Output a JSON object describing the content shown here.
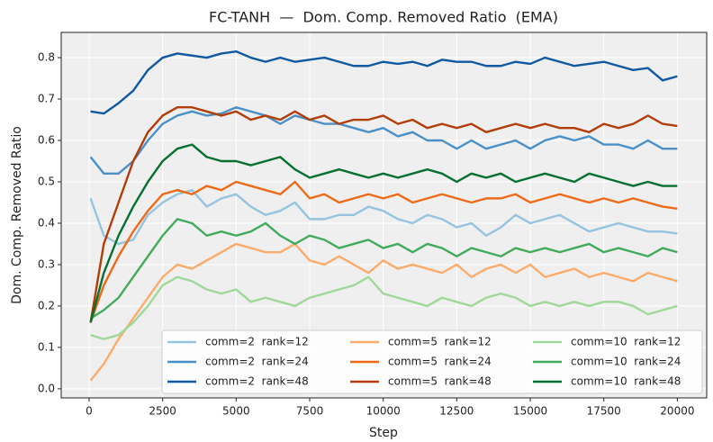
{
  "chart_data": {
    "type": "line",
    "title": "FC-TANH  —  Dom. Comp. Removed Ratio  (EMA)",
    "x_label": "Step",
    "y_label": "Dom. Comp. Removed Ratio",
    "x": [
      50,
      500,
      1000,
      1500,
      2000,
      2500,
      3000,
      3500,
      4000,
      4500,
      5000,
      5500,
      6000,
      6500,
      7000,
      7500,
      8000,
      8500,
      9000,
      9500,
      10000,
      10500,
      11000,
      11500,
      12000,
      12500,
      13000,
      13500,
      14000,
      14500,
      15000,
      15500,
      16000,
      16500,
      17000,
      17500,
      18000,
      18500,
      19000,
      19500,
      20000
    ],
    "xlim": [
      -948,
      20998
    ],
    "xticks": [
      0,
      2500,
      5000,
      7500,
      10000,
      12500,
      15000,
      17500,
      20000
    ],
    "ylim": [
      -0.022,
      0.861
    ],
    "yticks": [
      {
        "value": 0,
        "label": "0.0"
      },
      0.1,
      0.2,
      0.3,
      0.4,
      0.5,
      0.6,
      0.7,
      0.8
    ],
    "grid": true,
    "legend": "lower right",
    "legend_columns": 3,
    "series": [
      {
        "name": "comm=2  rank=12",
        "color": "#94c4df",
        "values": [
          0.46,
          0.37,
          0.35,
          0.36,
          0.42,
          0.45,
          0.47,
          0.48,
          0.44,
          0.46,
          0.47,
          0.44,
          0.42,
          0.43,
          0.45,
          0.41,
          0.41,
          0.42,
          0.42,
          0.44,
          0.43,
          0.41,
          0.4,
          0.42,
          0.41,
          0.39,
          0.4,
          0.37,
          0.39,
          0.42,
          0.4,
          0.41,
          0.42,
          0.4,
          0.38,
          0.39,
          0.4,
          0.39,
          0.38,
          0.38,
          0.375
        ]
      },
      {
        "name": "comm=2  rank=24",
        "color": "#4a90c8",
        "values": [
          0.56,
          0.52,
          0.52,
          0.55,
          0.6,
          0.64,
          0.66,
          0.67,
          0.66,
          0.665,
          0.68,
          0.67,
          0.66,
          0.64,
          0.66,
          0.65,
          0.64,
          0.64,
          0.63,
          0.62,
          0.63,
          0.61,
          0.62,
          0.6,
          0.6,
          0.58,
          0.6,
          0.58,
          0.59,
          0.6,
          0.58,
          0.6,
          0.61,
          0.6,
          0.61,
          0.59,
          0.59,
          0.58,
          0.6,
          0.58,
          0.58
        ]
      },
      {
        "name": "comm=2  rank=48",
        "color": "#0f59a3",
        "values": [
          0.67,
          0.665,
          0.69,
          0.72,
          0.77,
          0.8,
          0.81,
          0.805,
          0.8,
          0.81,
          0.815,
          0.8,
          0.79,
          0.8,
          0.79,
          0.795,
          0.8,
          0.79,
          0.78,
          0.78,
          0.79,
          0.785,
          0.79,
          0.78,
          0.795,
          0.79,
          0.79,
          0.78,
          0.78,
          0.79,
          0.785,
          0.8,
          0.79,
          0.78,
          0.785,
          0.79,
          0.78,
          0.77,
          0.775,
          0.745,
          0.755
        ]
      },
      {
        "name": "comm=5  rank=12",
        "color": "#fdab6a",
        "values": [
          0.02,
          0.06,
          0.12,
          0.17,
          0.22,
          0.27,
          0.3,
          0.29,
          0.31,
          0.33,
          0.35,
          0.34,
          0.33,
          0.33,
          0.35,
          0.31,
          0.3,
          0.32,
          0.3,
          0.28,
          0.31,
          0.29,
          0.3,
          0.29,
          0.28,
          0.3,
          0.27,
          0.29,
          0.3,
          0.28,
          0.3,
          0.27,
          0.28,
          0.29,
          0.27,
          0.28,
          0.27,
          0.26,
          0.28,
          0.27,
          0.26
        ]
      },
      {
        "name": "comm=5  rank=24",
        "color": "#ef6a18",
        "values": [
          0.16,
          0.25,
          0.32,
          0.38,
          0.43,
          0.47,
          0.48,
          0.47,
          0.49,
          0.48,
          0.5,
          0.49,
          0.48,
          0.47,
          0.5,
          0.46,
          0.47,
          0.45,
          0.46,
          0.47,
          0.46,
          0.47,
          0.45,
          0.46,
          0.47,
          0.46,
          0.45,
          0.46,
          0.46,
          0.47,
          0.45,
          0.46,
          0.47,
          0.46,
          0.45,
          0.46,
          0.45,
          0.46,
          0.45,
          0.44,
          0.435
        ]
      },
      {
        "name": "comm=5  rank=48",
        "color": "#b23d08",
        "values": [
          0.16,
          0.35,
          0.45,
          0.55,
          0.62,
          0.66,
          0.68,
          0.68,
          0.67,
          0.66,
          0.67,
          0.65,
          0.66,
          0.65,
          0.67,
          0.65,
          0.66,
          0.64,
          0.65,
          0.65,
          0.66,
          0.64,
          0.65,
          0.63,
          0.64,
          0.63,
          0.64,
          0.62,
          0.63,
          0.64,
          0.63,
          0.64,
          0.63,
          0.63,
          0.62,
          0.64,
          0.63,
          0.64,
          0.66,
          0.64,
          0.635
        ]
      },
      {
        "name": "comm=10  rank=12",
        "color": "#a0d89a",
        "values": [
          0.13,
          0.12,
          0.13,
          0.16,
          0.2,
          0.25,
          0.27,
          0.26,
          0.24,
          0.23,
          0.24,
          0.21,
          0.22,
          0.21,
          0.2,
          0.22,
          0.23,
          0.24,
          0.25,
          0.27,
          0.23,
          0.22,
          0.21,
          0.2,
          0.22,
          0.21,
          0.2,
          0.22,
          0.23,
          0.22,
          0.2,
          0.21,
          0.2,
          0.21,
          0.2,
          0.21,
          0.21,
          0.2,
          0.18,
          0.19,
          0.2
        ]
      },
      {
        "name": "comm=10  rank=24",
        "color": "#42aa5b",
        "values": [
          0.17,
          0.19,
          0.22,
          0.27,
          0.32,
          0.37,
          0.41,
          0.4,
          0.37,
          0.38,
          0.37,
          0.38,
          0.4,
          0.37,
          0.35,
          0.37,
          0.36,
          0.34,
          0.35,
          0.36,
          0.34,
          0.35,
          0.33,
          0.35,
          0.34,
          0.32,
          0.34,
          0.33,
          0.32,
          0.34,
          0.33,
          0.34,
          0.33,
          0.34,
          0.35,
          0.33,
          0.34,
          0.33,
          0.32,
          0.34,
          0.33
        ]
      },
      {
        "name": "comm=10  rank=48",
        "color": "#05702f",
        "values": [
          0.16,
          0.28,
          0.37,
          0.44,
          0.5,
          0.55,
          0.58,
          0.59,
          0.56,
          0.55,
          0.55,
          0.54,
          0.55,
          0.56,
          0.53,
          0.51,
          0.52,
          0.53,
          0.52,
          0.51,
          0.52,
          0.51,
          0.52,
          0.53,
          0.52,
          0.5,
          0.52,
          0.51,
          0.52,
          0.5,
          0.51,
          0.52,
          0.51,
          0.5,
          0.52,
          0.51,
          0.5,
          0.49,
          0.5,
          0.49,
          0.49
        ]
      }
    ]
  }
}
